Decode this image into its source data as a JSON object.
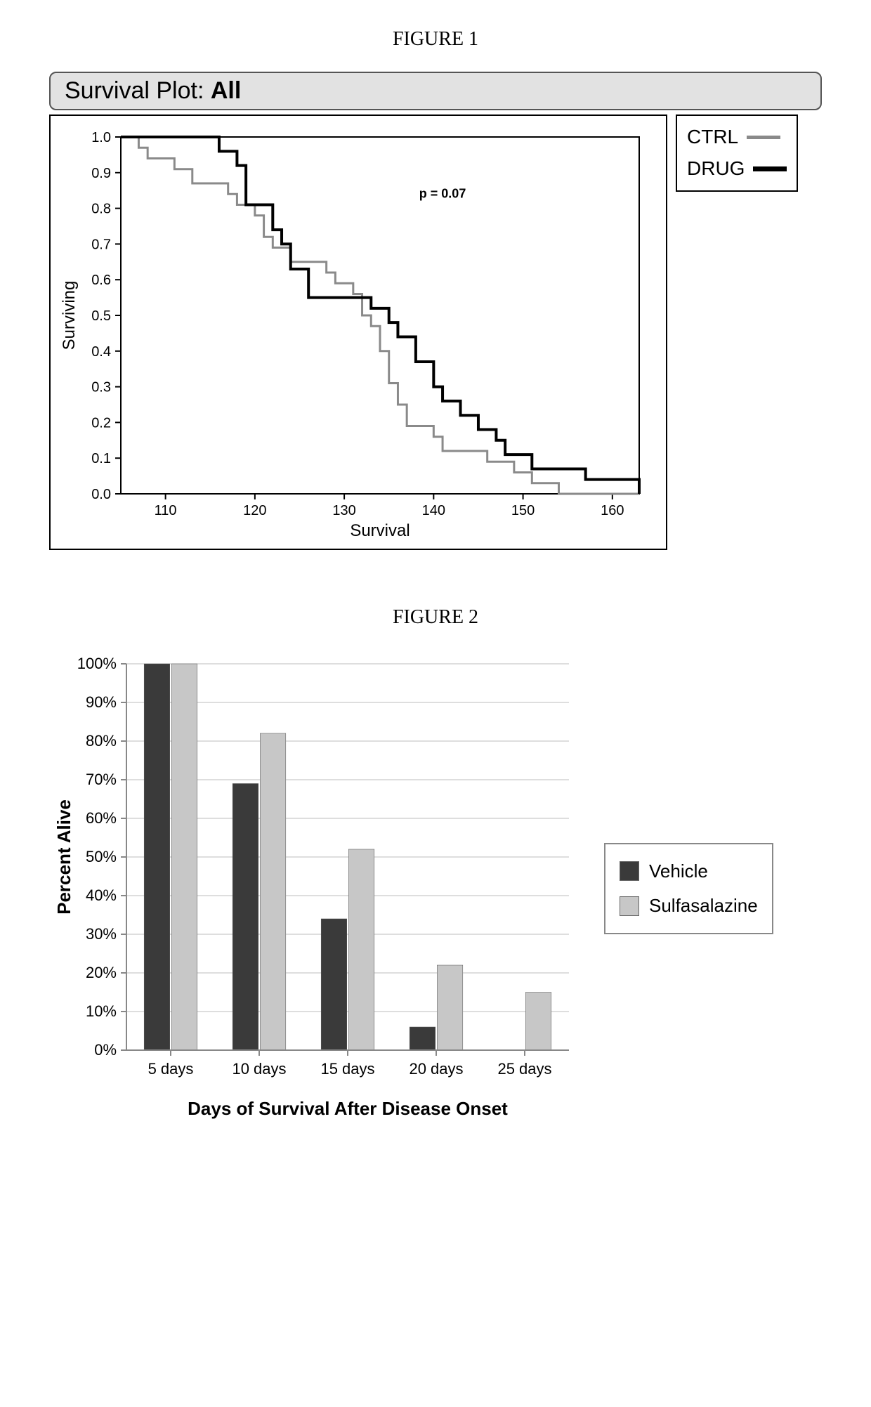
{
  "figure1": {
    "label": "FIGURE 1",
    "title_prefix": "Survival Plot:  ",
    "title_bold": "All",
    "type": "kaplan-meier-step",
    "pvalue_text": "p = 0.07",
    "xlabel": "Survival",
    "ylabel": "Surviving",
    "xlim": [
      105,
      163
    ],
    "ylim": [
      0.0,
      1.0
    ],
    "xticks": [
      110,
      120,
      130,
      140,
      150,
      160
    ],
    "yticks": [
      0.0,
      0.1,
      0.2,
      0.3,
      0.4,
      0.5,
      0.6,
      0.7,
      0.8,
      0.9,
      1.0
    ],
    "axis_fontsize": 20,
    "label_fontsize": 24,
    "line_width_ctrl": 3,
    "line_width_drug": 4,
    "color_ctrl": "#8a8a8a",
    "color_drug": "#000000",
    "background_color": "#ffffff",
    "legend": [
      {
        "label": "CTRL",
        "color": "#8a8a8a"
      },
      {
        "label": "DRUG",
        "color": "#000000"
      }
    ],
    "ctrl_points": [
      [
        105,
        1.0
      ],
      [
        107,
        1.0
      ],
      [
        107,
        0.97
      ],
      [
        108,
        0.97
      ],
      [
        108,
        0.94
      ],
      [
        111,
        0.94
      ],
      [
        111,
        0.91
      ],
      [
        113,
        0.91
      ],
      [
        113,
        0.87
      ],
      [
        117,
        0.87
      ],
      [
        117,
        0.84
      ],
      [
        118,
        0.84
      ],
      [
        118,
        0.81
      ],
      [
        120,
        0.81
      ],
      [
        120,
        0.78
      ],
      [
        121,
        0.78
      ],
      [
        121,
        0.72
      ],
      [
        122,
        0.72
      ],
      [
        122,
        0.69
      ],
      [
        124,
        0.69
      ],
      [
        124,
        0.65
      ],
      [
        128,
        0.65
      ],
      [
        128,
        0.62
      ],
      [
        129,
        0.62
      ],
      [
        129,
        0.59
      ],
      [
        131,
        0.59
      ],
      [
        131,
        0.56
      ],
      [
        132,
        0.56
      ],
      [
        132,
        0.5
      ],
      [
        133,
        0.5
      ],
      [
        133,
        0.47
      ],
      [
        134,
        0.47
      ],
      [
        134,
        0.4
      ],
      [
        135,
        0.4
      ],
      [
        135,
        0.31
      ],
      [
        136,
        0.31
      ],
      [
        136,
        0.25
      ],
      [
        137,
        0.25
      ],
      [
        137,
        0.19
      ],
      [
        140,
        0.19
      ],
      [
        140,
        0.16
      ],
      [
        141,
        0.16
      ],
      [
        141,
        0.12
      ],
      [
        146,
        0.12
      ],
      [
        146,
        0.09
      ],
      [
        149,
        0.09
      ],
      [
        149,
        0.06
      ],
      [
        151,
        0.06
      ],
      [
        151,
        0.03
      ],
      [
        154,
        0.03
      ],
      [
        154,
        0.0
      ],
      [
        163,
        0.0
      ]
    ],
    "drug_points": [
      [
        105,
        1.0
      ],
      [
        116,
        1.0
      ],
      [
        116,
        0.96
      ],
      [
        118,
        0.96
      ],
      [
        118,
        0.92
      ],
      [
        119,
        0.92
      ],
      [
        119,
        0.81
      ],
      [
        122,
        0.81
      ],
      [
        122,
        0.74
      ],
      [
        123,
        0.74
      ],
      [
        123,
        0.7
      ],
      [
        124,
        0.7
      ],
      [
        124,
        0.63
      ],
      [
        126,
        0.63
      ],
      [
        126,
        0.55
      ],
      [
        133,
        0.55
      ],
      [
        133,
        0.52
      ],
      [
        135,
        0.52
      ],
      [
        135,
        0.48
      ],
      [
        136,
        0.48
      ],
      [
        136,
        0.44
      ],
      [
        138,
        0.44
      ],
      [
        138,
        0.37
      ],
      [
        140,
        0.37
      ],
      [
        140,
        0.3
      ],
      [
        141,
        0.3
      ],
      [
        141,
        0.26
      ],
      [
        143,
        0.26
      ],
      [
        143,
        0.22
      ],
      [
        145,
        0.22
      ],
      [
        145,
        0.18
      ],
      [
        147,
        0.18
      ],
      [
        147,
        0.15
      ],
      [
        148,
        0.15
      ],
      [
        148,
        0.11
      ],
      [
        151,
        0.11
      ],
      [
        151,
        0.07
      ],
      [
        157,
        0.07
      ],
      [
        157,
        0.04
      ],
      [
        163,
        0.04
      ],
      [
        163,
        0.0
      ]
    ]
  },
  "figure2": {
    "label": "FIGURE 2",
    "type": "grouped-bar",
    "xlabel": "Days of Survival After Disease Onset",
    "ylabel": "Percent Alive",
    "categories": [
      "5 days",
      "10 days",
      "15 days",
      "20 days",
      "25 days"
    ],
    "series": [
      {
        "name": "Vehicle",
        "color": "#3a3a3a",
        "values": [
          100,
          69,
          34,
          6,
          0
        ]
      },
      {
        "name": "Sulfasalazine",
        "color": "#c7c7c7",
        "values": [
          100,
          82,
          52,
          22,
          15
        ]
      }
    ],
    "ylim": [
      0,
      100
    ],
    "yticks": [
      0,
      10,
      20,
      30,
      40,
      50,
      60,
      70,
      80,
      90,
      100
    ],
    "ytick_labels": [
      "0%",
      "10%",
      "20%",
      "30%",
      "40%",
      "50%",
      "60%",
      "70%",
      "80%",
      "90%",
      "100%"
    ],
    "grid_color": "#bdbdbd",
    "axis_color": "#888888",
    "bar_group_width": 0.6,
    "bar_gap": 0.02,
    "axis_fontsize": 22,
    "label_fontsize": 26,
    "label_fontweight": "700",
    "background_color": "#ffffff"
  }
}
